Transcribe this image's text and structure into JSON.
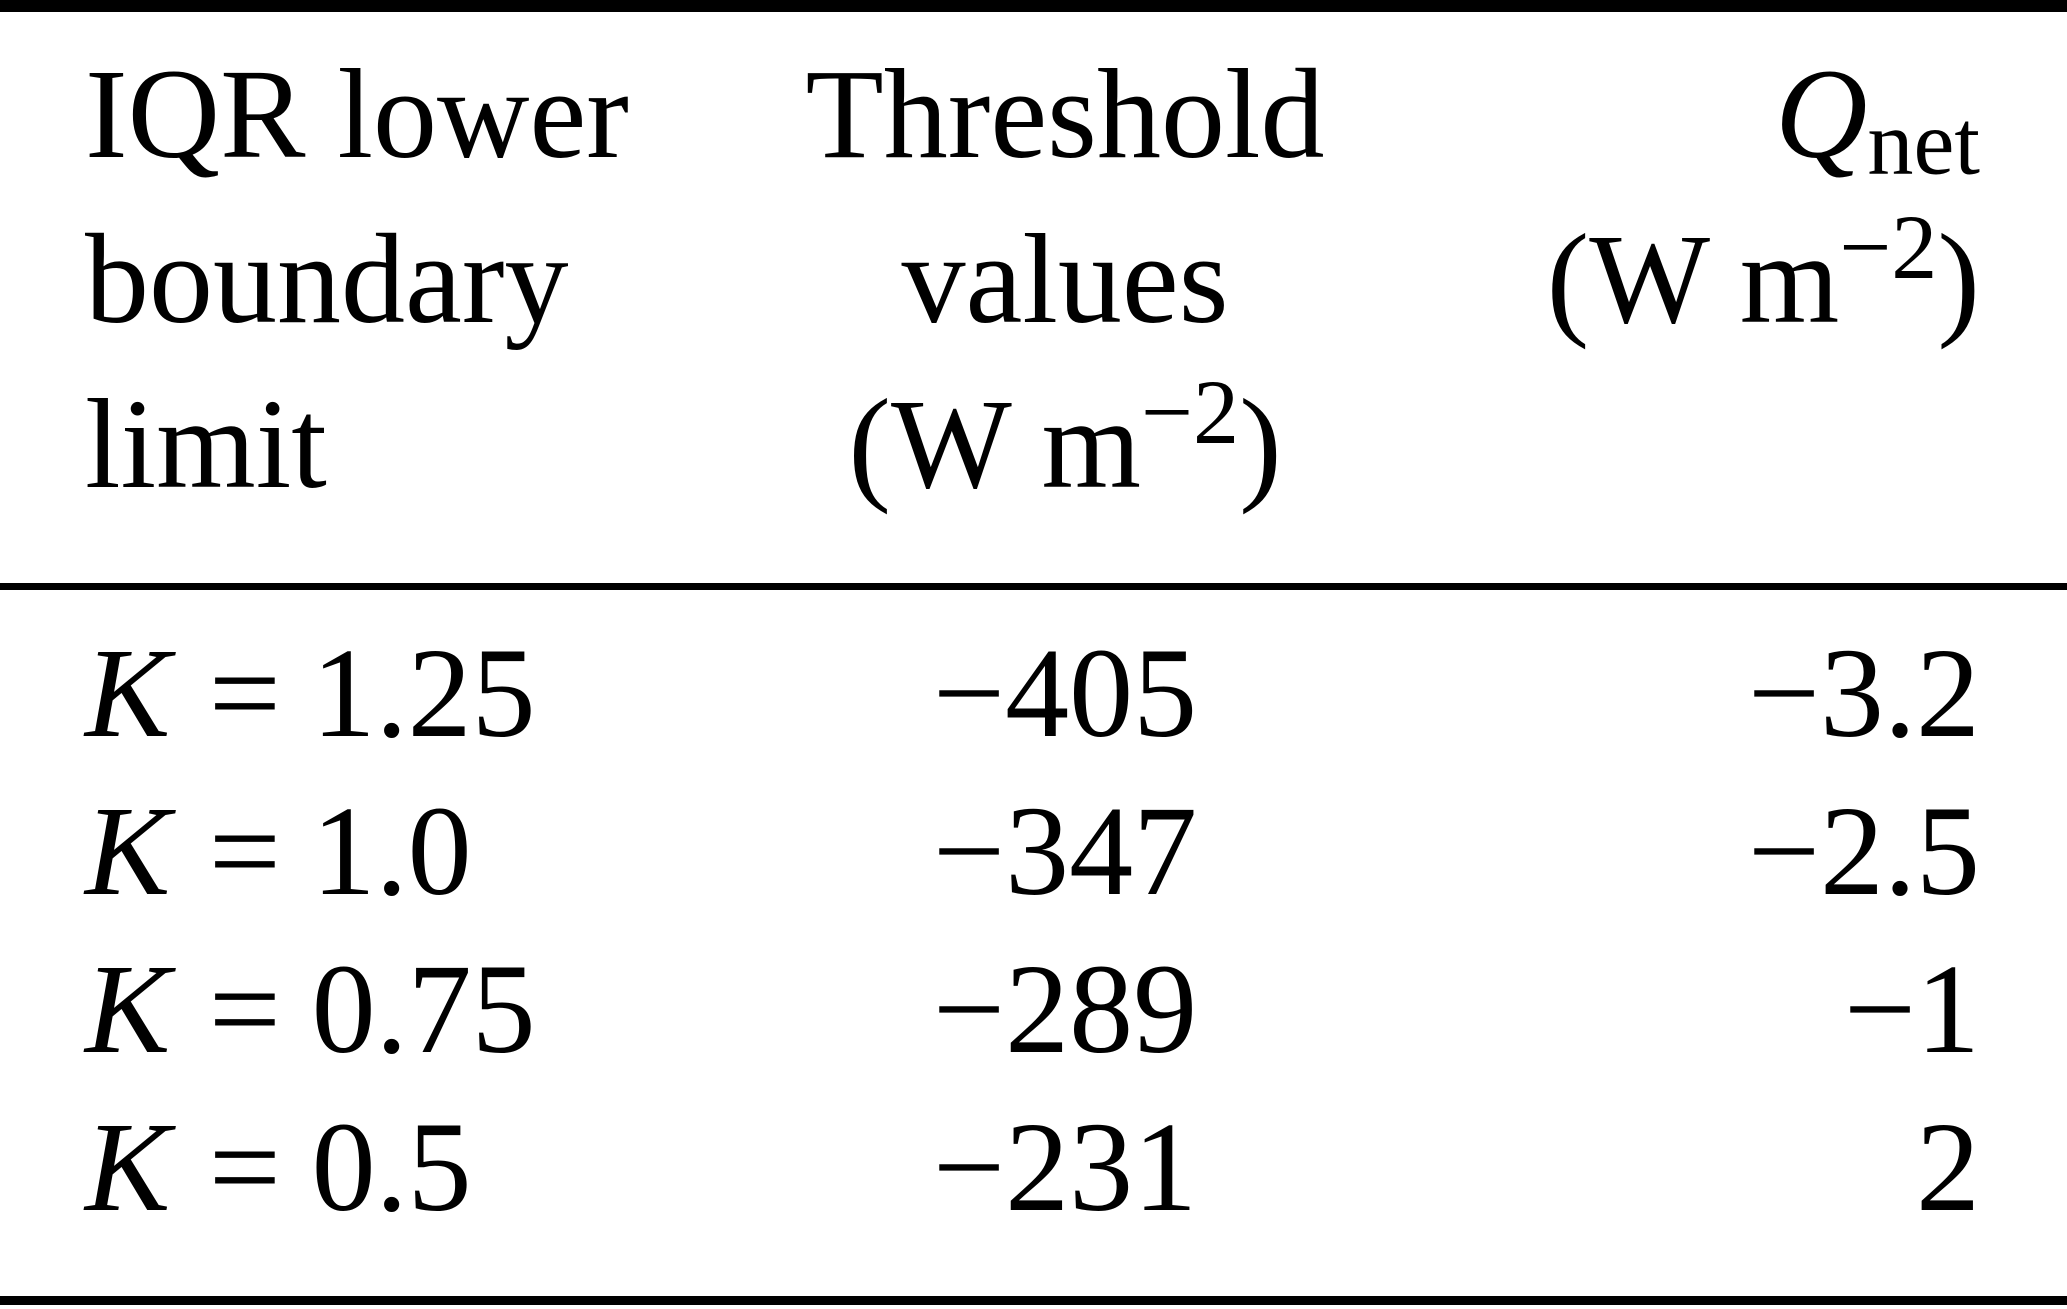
{
  "colors": {
    "background": "#ffffff",
    "text": "#000000",
    "rule": "#000000"
  },
  "table": {
    "header": {
      "col1": {
        "lines": [
          "IQR lower",
          "boundary",
          "limit"
        ]
      },
      "col2": {
        "lines": [
          "Threshold",
          "values"
        ],
        "unit": {
          "prefix": "(W m",
          "sup": "−2",
          "suffix": ")"
        }
      },
      "col3": {
        "symbol": "Q",
        "sub": "net",
        "unit": {
          "prefix": "(W m",
          "sup": "−2",
          "suffix": ")"
        }
      }
    },
    "rows": [
      {
        "var": "K",
        "eq": "=",
        "value": "1.25",
        "threshold": "−405",
        "qnet": "−3.2"
      },
      {
        "var": "K",
        "eq": "=",
        "value": "1.0",
        "threshold": "−347",
        "qnet": "−2.5"
      },
      {
        "var": "K",
        "eq": "=",
        "value": "0.75",
        "threshold": "−289",
        "qnet": "−1"
      },
      {
        "var": "K",
        "eq": "=",
        "value": "0.5",
        "threshold": "−231",
        "qnet": "2"
      }
    ]
  },
  "chart_data": {
    "type": "table",
    "title": "",
    "columns": [
      "IQR lower boundary limit",
      "Threshold values (W m−2)",
      "Qnet (W m−2)"
    ],
    "rows": [
      [
        "K = 1.25",
        -405,
        -3.2
      ],
      [
        "K = 1.0",
        -347,
        -2.5
      ],
      [
        "K = 0.75",
        -289,
        -1
      ],
      [
        "K = 0.5",
        -231,
        2
      ]
    ]
  }
}
